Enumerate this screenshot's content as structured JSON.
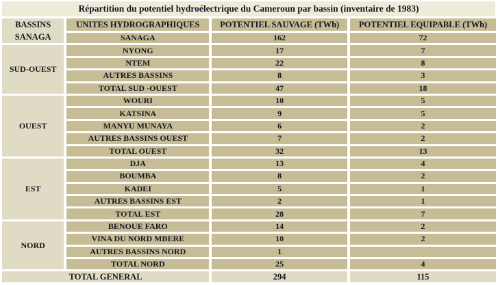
{
  "title": "Répartition du potentiel hydroélectrique du Cameroun par bassin (inventaire de 1983)",
  "table": {
    "corner_header": "BASSINS",
    "columns": [
      "UNITES HYDROGRAPHIQUES",
      "POTENTIEL SAUVAGE (TWh)",
      "POTENTIEL EQUIPABLE (TWh)"
    ],
    "groups": [
      {
        "basin": "SANAGA",
        "rows": [
          [
            "SANAGA",
            "162",
            "72"
          ]
        ]
      },
      {
        "basin": "SUD-OUEST",
        "rows": [
          [
            "NYONG",
            "17",
            "7"
          ],
          [
            "NTEM",
            "22",
            "8"
          ],
          [
            "AUTRES BASSINS",
            "8",
            "3"
          ],
          [
            "TOTAL SUD -OUEST",
            "47",
            "18"
          ]
        ]
      },
      {
        "basin": "OUEST",
        "rows": [
          [
            "WOURI",
            "10",
            "5"
          ],
          [
            "KATSINA",
            "9",
            "5"
          ],
          [
            "MANYU MUNAYA",
            "6",
            "2"
          ],
          [
            "AUTRES BASSINS OUEST",
            "7",
            "2"
          ],
          [
            "TOTAL OUEST",
            "32",
            "13"
          ]
        ]
      },
      {
        "basin": "EST",
        "rows": [
          [
            "DJA",
            "13",
            "4"
          ],
          [
            "BOUMBA",
            "8",
            "2"
          ],
          [
            "KADEI",
            "5",
            "1"
          ],
          [
            "AUTRES BASSINS EST",
            "2",
            "1"
          ],
          [
            "TOTAL EST",
            "28",
            "7"
          ]
        ]
      },
      {
        "basin": "NORD",
        "rows": [
          [
            "BENOUE FARO",
            "14",
            "2"
          ],
          [
            "VINA DU NORD MBERE",
            "10",
            "2"
          ],
          [
            "AUTRES BASSINS NORD",
            "1",
            ""
          ],
          [
            "TOTAL NORD",
            "25",
            "4"
          ]
        ]
      }
    ],
    "footer": {
      "label": "TOTAL GENERAL",
      "sauvage": "294",
      "equipable": "115"
    }
  },
  "colors": {
    "title_bg": "#EFEBDA",
    "light_cell_bg": "#DFDBC5",
    "cell_bg": "#C6BD97",
    "text": "#17171F",
    "separator": "#FFFFFF"
  }
}
